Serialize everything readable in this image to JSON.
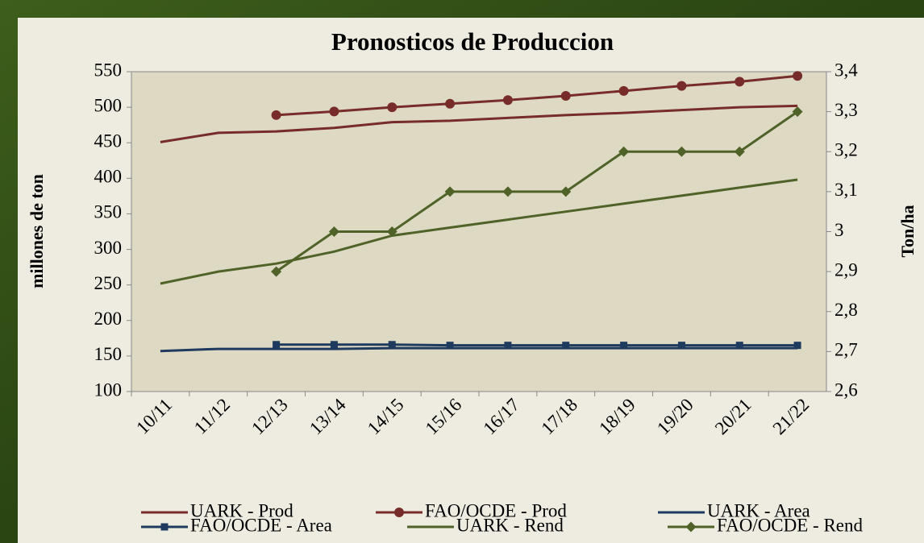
{
  "chart_data": {
    "type": "line",
    "title": "Pronosticos de Produccion",
    "ylabel": "millones de ton",
    "y2label": "Ton/ha",
    "categories": [
      "10/11",
      "11/12",
      "12/13",
      "13/14",
      "14/15",
      "15/16",
      "16/17",
      "17/18",
      "18/19",
      "19/20",
      "20/21",
      "21/22"
    ],
    "ylim": [
      100,
      550
    ],
    "yticks": [
      100,
      150,
      200,
      250,
      300,
      350,
      400,
      450,
      500,
      550
    ],
    "y2lim": [
      2.6,
      3.4
    ],
    "y2ticks": [
      {
        "value": 2.6,
        "label": "2,6"
      },
      {
        "value": 2.7,
        "label": "2,7"
      },
      {
        "value": 2.8,
        "label": "2,8"
      },
      {
        "value": 2.9,
        "label": "2,9"
      },
      3,
      {
        "value": 3.1,
        "label": "3,1"
      },
      {
        "value": 3.2,
        "label": "3,2"
      },
      {
        "value": 3.3,
        "label": "3,3"
      },
      {
        "value": 3.4,
        "label": "3,4"
      }
    ],
    "series": [
      {
        "name": "UARK - Prod",
        "color": "#772c2a",
        "values": [
          451,
          464,
          466,
          471,
          479,
          481,
          485,
          489,
          492,
          496,
          500,
          502
        ]
      },
      {
        "name": "FAO/OCDE - Prod",
        "color": "#772c2a",
        "marker": "circle",
        "values": [
          null,
          null,
          489,
          494,
          500,
          505,
          510,
          516,
          523,
          530,
          536,
          544
        ]
      },
      {
        "name": "UARK - Area",
        "color": "#1f3a5f",
        "values": [
          157,
          160,
          160,
          160,
          161,
          161,
          161,
          161,
          161,
          161,
          161,
          161
        ]
      },
      {
        "name": "FAO/OCDE - Area",
        "color": "#1f3a5f",
        "marker": "square",
        "values": [
          null,
          null,
          166,
          166,
          166,
          165,
          165,
          165,
          165,
          165,
          165,
          165
        ]
      },
      {
        "name": "UARK - Rend",
        "color": "#4f6228",
        "axis": "y2",
        "values": [
          2.87,
          2.9,
          2.92,
          2.95,
          2.99,
          3.01,
          3.03,
          3.05,
          3.07,
          3.09,
          3.11,
          3.13
        ]
      },
      {
        "name": "FAO/OCDE - Rend",
        "color": "#4f6228",
        "axis": "y2",
        "marker": "diamond",
        "values": [
          null,
          null,
          2.9,
          3.0,
          3.0,
          3.1,
          3.1,
          3.1,
          3.2,
          3.2,
          3.2,
          3.3
        ]
      }
    ]
  }
}
